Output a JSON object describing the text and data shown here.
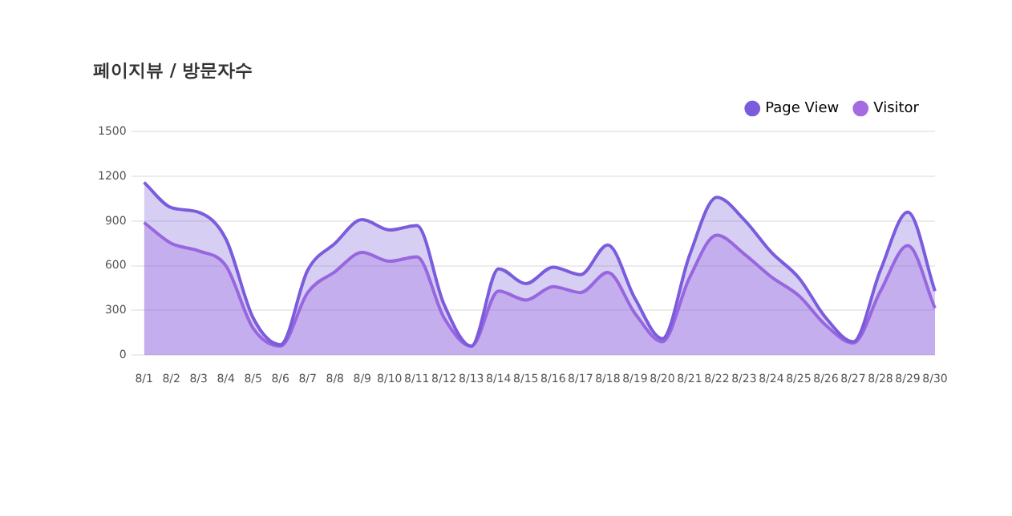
{
  "chart_data": {
    "type": "area",
    "title": "페이지뷰 / 방문자수",
    "categories": [
      "8/1",
      "8/2",
      "8/3",
      "8/4",
      "8/5",
      "8/6",
      "8/7",
      "8/8",
      "8/9",
      "8/10",
      "8/11",
      "8/12",
      "8/13",
      "8/14",
      "8/15",
      "8/16",
      "8/17",
      "8/18",
      "8/19",
      "8/20",
      "8/21",
      "8/22",
      "8/23",
      "8/24",
      "8/25",
      "8/26",
      "8/27",
      "8/28",
      "8/29",
      "8/30"
    ],
    "series": [
      {
        "name": "Page View",
        "color": "#7b5cdc",
        "values": [
          1160,
          990,
          960,
          780,
          250,
          70,
          570,
          750,
          910,
          840,
          870,
          340,
          60,
          580,
          480,
          590,
          540,
          740,
          380,
          110,
          670,
          1060,
          910,
          690,
          520,
          250,
          90,
          570,
          960,
          430
        ]
      },
      {
        "name": "Visitor",
        "color": "#a56be0",
        "values": [
          890,
          750,
          700,
          600,
          180,
          60,
          420,
          560,
          690,
          630,
          660,
          250,
          60,
          430,
          370,
          460,
          420,
          555,
          280,
          90,
          520,
          805,
          680,
          525,
          400,
          200,
          80,
          430,
          735,
          315
        ]
      }
    ],
    "ylim": [
      0,
      1500
    ],
    "yticks": [
      0,
      300,
      600,
      900,
      1200,
      1500
    ],
    "grid": "y",
    "legend": "top right",
    "marker": "none"
  }
}
